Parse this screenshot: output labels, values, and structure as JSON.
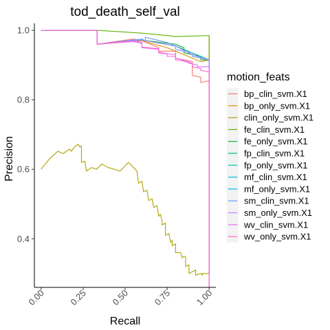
{
  "chart_data": {
    "type": "line",
    "title": "tod_death_self_val",
    "xlabel": "Recall",
    "ylabel": "Precision",
    "xlim": [
      -0.04,
      1.04
    ],
    "ylim": [
      0.26,
      1.02
    ],
    "x_ticks": [
      0.0,
      0.25,
      0.5,
      0.75,
      1.0
    ],
    "x_tick_labels": [
      "0.00",
      "0.25",
      "0.50",
      "0.75",
      "1.00"
    ],
    "y_ticks": [
      0.4,
      0.6,
      0.8,
      1.0
    ],
    "y_tick_labels": [
      "0.4",
      "0.6",
      "0.8",
      "1.0"
    ],
    "grid": false,
    "legend": {
      "title": "motion_feats",
      "placement": "right"
    },
    "series": [
      {
        "name": "bp_clin_svm.X1",
        "color": "#F8766D",
        "x": [
          0,
          0.333,
          0.333,
          0.55,
          0.6,
          0.7,
          0.7,
          0.8,
          0.8,
          0.9,
          0.9,
          0.95,
          0.95,
          1.0,
          1.0
        ],
        "y": [
          1.0,
          1.0,
          0.96,
          0.975,
          0.97,
          0.95,
          0.94,
          0.94,
          0.92,
          0.91,
          0.87,
          0.865,
          0.85,
          0.855,
          0.3
        ]
      },
      {
        "name": "bp_only_svm.X1",
        "color": "#DB8E00",
        "x": [
          0,
          0.333,
          0.333,
          0.6,
          0.75,
          0.85,
          0.95,
          1.0,
          1.0
        ],
        "y": [
          1.0,
          1.0,
          0.96,
          0.97,
          0.95,
          0.93,
          0.91,
          0.915,
          0.3
        ]
      },
      {
        "name": "clin_only_svm.X1",
        "color": "#AEA200",
        "x": [
          0,
          0.05,
          0.1,
          0.13,
          0.17,
          0.18,
          0.2,
          0.22,
          0.23,
          0.24,
          0.24,
          0.26,
          0.27,
          0.3,
          0.33,
          0.36,
          0.4,
          0.47,
          0.52,
          0.55,
          0.57,
          0.58,
          0.6,
          0.61,
          0.63,
          0.64,
          0.66,
          0.67,
          0.69,
          0.7,
          0.71,
          0.72,
          0.72,
          0.74,
          0.74,
          0.76,
          0.77,
          0.78,
          0.78,
          0.8,
          0.8,
          0.83,
          0.84,
          0.85,
          0.86,
          0.86,
          0.88,
          0.88,
          0.9,
          0.92,
          0.92,
          0.95,
          0.96,
          0.96,
          1.0,
          1.0
        ],
        "y": [
          0.6,
          0.63,
          0.652,
          0.645,
          0.658,
          0.652,
          0.665,
          0.672,
          0.664,
          0.667,
          0.62,
          0.623,
          0.595,
          0.605,
          0.6,
          0.615,
          0.605,
          0.595,
          0.62,
          0.605,
          0.595,
          0.56,
          0.565,
          0.535,
          0.54,
          0.51,
          0.515,
          0.49,
          0.495,
          0.465,
          0.47,
          0.45,
          0.44,
          0.445,
          0.41,
          0.415,
          0.39,
          0.395,
          0.38,
          0.385,
          0.36,
          0.36,
          0.345,
          0.35,
          0.348,
          0.32,
          0.325,
          0.3,
          0.305,
          0.31,
          0.295,
          0.3,
          0.295,
          0.3,
          0.3,
          0.98
        ]
      },
      {
        "name": "fe_clin_svm.X1",
        "color": "#5EB300",
        "x": [
          0,
          0.333,
          0.333,
          0.6,
          0.75,
          0.8,
          1.0,
          1.0
        ],
        "y": [
          1.0,
          1.0,
          1.0,
          0.992,
          0.985,
          0.982,
          0.985,
          0.3
        ]
      },
      {
        "name": "fe_only_svm.X1",
        "color": "#00BA38",
        "x": [
          0,
          0.333,
          0.333,
          0.6,
          0.8,
          0.85,
          0.85,
          0.95,
          0.95,
          1.0,
          1.0
        ],
        "y": [
          1.0,
          1.0,
          0.96,
          0.972,
          0.96,
          0.95,
          0.935,
          0.925,
          0.915,
          0.915,
          0.3
        ]
      },
      {
        "name": "fp_clin_svm.X1",
        "color": "#00BF74",
        "x": [
          0,
          0.333,
          0.333,
          0.6,
          0.8,
          0.9,
          1.0,
          1.0
        ],
        "y": [
          1.0,
          1.0,
          0.96,
          0.972,
          0.955,
          0.935,
          0.915,
          0.3
        ]
      },
      {
        "name": "fp_only_svm.X1",
        "color": "#00C0AF",
        "x": [
          0,
          0.333,
          0.333,
          0.6,
          0.8,
          0.9,
          1.0,
          1.0
        ],
        "y": [
          1.0,
          1.0,
          0.96,
          0.972,
          0.955,
          0.93,
          0.915,
          0.3
        ]
      },
      {
        "name": "mf_clin_svm.X1",
        "color": "#00BCD8",
        "x": [
          0,
          0.333,
          0.333,
          0.6,
          0.8,
          0.9,
          1.0,
          1.0
        ],
        "y": [
          1.0,
          1.0,
          0.96,
          0.972,
          0.955,
          0.93,
          0.915,
          0.3
        ]
      },
      {
        "name": "mf_only_svm.X1",
        "color": "#00B0F6",
        "x": [
          0,
          0.333,
          0.333,
          0.6,
          0.8,
          0.9,
          1.0,
          1.0
        ],
        "y": [
          1.0,
          1.0,
          0.96,
          0.972,
          0.955,
          0.93,
          0.915,
          0.3
        ]
      },
      {
        "name": "sm_clin_svm.X1",
        "color": "#619CFF",
        "x": [
          0,
          0.333,
          0.333,
          0.6,
          0.62,
          0.62,
          0.75,
          0.8,
          0.8,
          0.9,
          0.9,
          1.0,
          1.0
        ],
        "y": [
          1.0,
          1.0,
          0.96,
          0.975,
          0.97,
          0.98,
          0.965,
          0.955,
          0.945,
          0.935,
          0.925,
          0.915,
          0.3
        ]
      },
      {
        "name": "sm_only_svm.X1",
        "color": "#B983FF",
        "x": [
          0,
          0.333,
          0.333,
          0.6,
          0.8,
          0.9,
          1.0,
          1.0
        ],
        "y": [
          1.0,
          1.0,
          0.96,
          0.972,
          0.955,
          0.93,
          0.915,
          0.3
        ]
      },
      {
        "name": "wv_clin_svm.X1",
        "color": "#E76BF3",
        "x": [
          0,
          0.333,
          0.333,
          0.55,
          0.6,
          0.6,
          0.7,
          0.7,
          0.8,
          0.8,
          0.88,
          0.88,
          0.93,
          0.93,
          1.0,
          1.0
        ],
        "y": [
          1.0,
          1.0,
          0.96,
          0.97,
          0.965,
          0.95,
          0.945,
          0.935,
          0.93,
          0.92,
          0.91,
          0.905,
          0.9,
          0.895,
          0.895,
          0.26
        ]
      },
      {
        "name": "wv_only_svm.X1",
        "color": "#FD61D1",
        "x": [
          0,
          0.333,
          0.333,
          0.55,
          0.6,
          0.6,
          0.7,
          0.7,
          0.75,
          0.75,
          0.8,
          0.8,
          0.85,
          0.85,
          0.9,
          0.9,
          0.95,
          0.95,
          1.0,
          1.0
        ],
        "y": [
          1.0,
          1.0,
          0.96,
          0.968,
          0.962,
          0.952,
          0.947,
          0.937,
          0.933,
          0.925,
          0.925,
          0.915,
          0.912,
          0.91,
          0.905,
          0.895,
          0.89,
          0.885,
          0.88,
          0.26
        ]
      }
    ]
  }
}
